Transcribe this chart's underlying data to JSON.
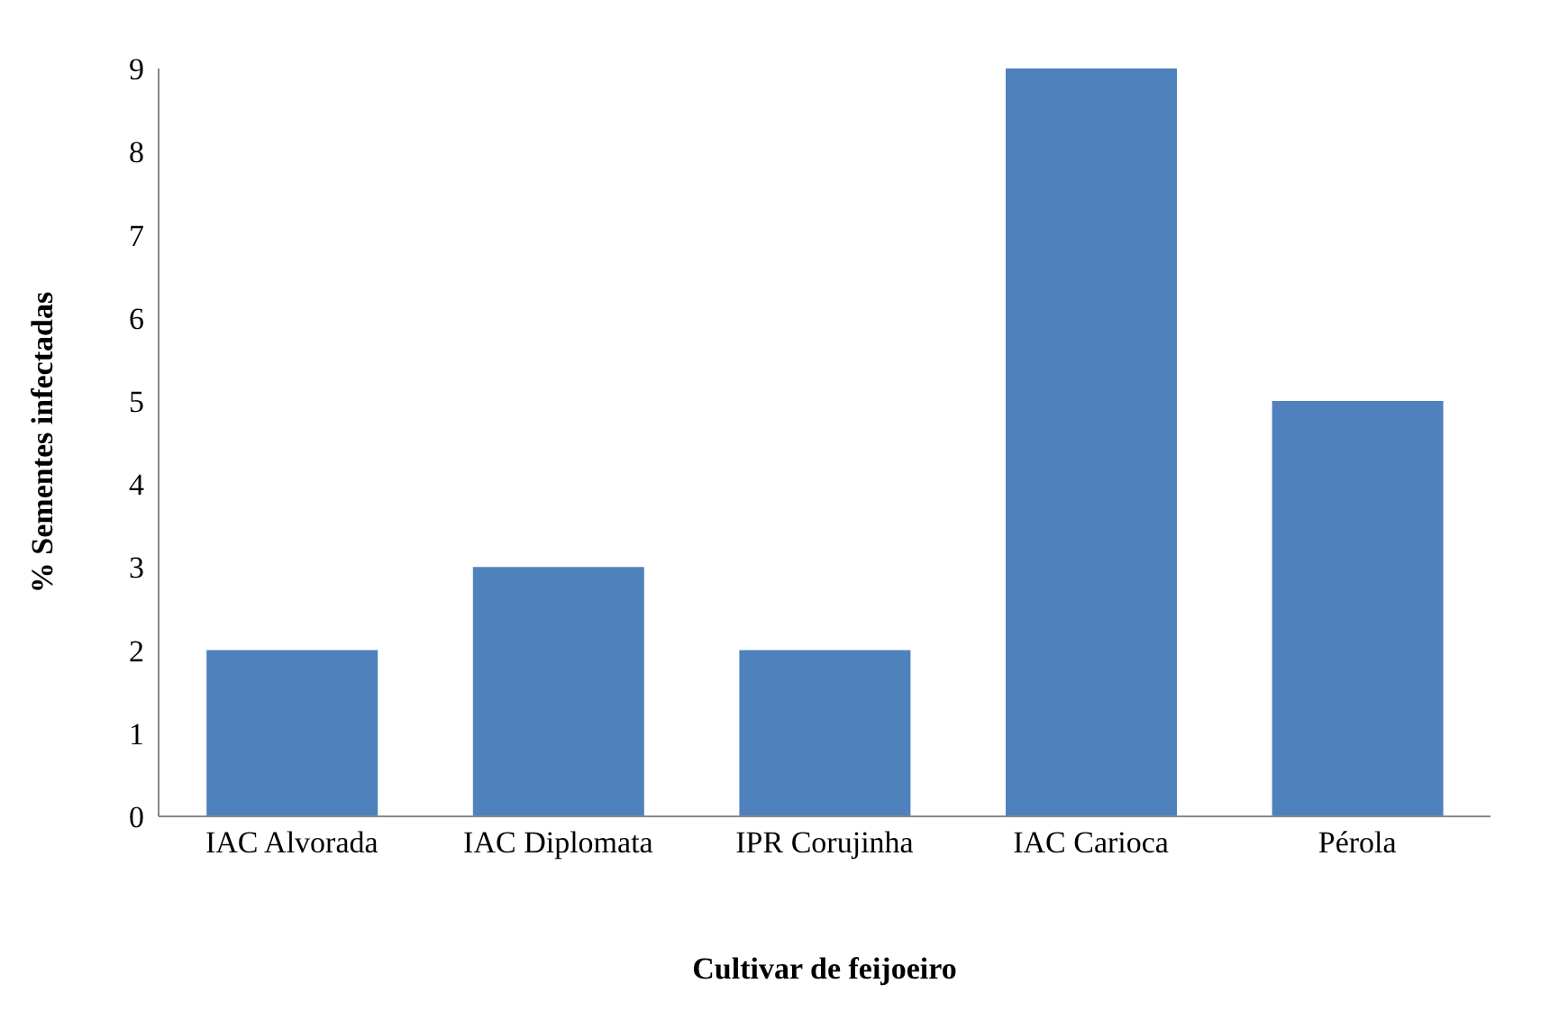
{
  "chart_data": {
    "type": "bar",
    "xlabel": "Cultivar de feijoeiro",
    "ylabel": "% Sementes  infectadas",
    "categories": [
      "IAC Alvorada",
      "IAC Diplomata",
      "IPR Corujinha",
      "IAC Carioca",
      "Pérola"
    ],
    "values": [
      2,
      3,
      2,
      9,
      5
    ],
    "color": "#4f81bd",
    "ylim": [
      0,
      9
    ],
    "yticks": [
      0,
      1,
      2,
      3,
      4,
      5,
      6,
      7,
      8,
      9
    ],
    "grid": false,
    "legend": false
  }
}
